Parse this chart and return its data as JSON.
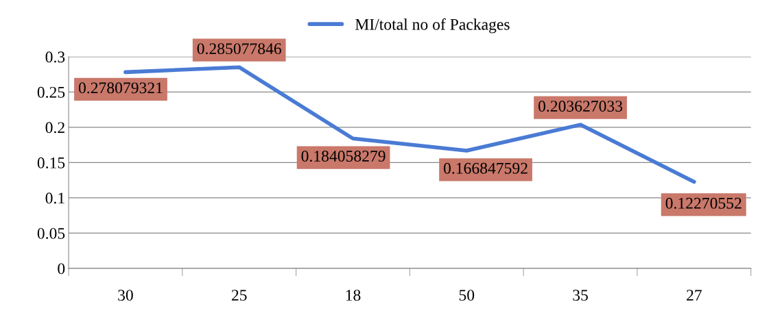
{
  "chart_data": {
    "type": "line",
    "categories": [
      "30",
      "25",
      "18",
      "50",
      "35",
      "27"
    ],
    "series": [
      {
        "name": "MI/total no of Packages",
        "color": "#4a7bd4",
        "values": [
          0.278079321,
          0.285077846,
          0.184058279,
          0.166847592,
          0.203627033,
          0.12270552
        ]
      }
    ],
    "ylim": [
      0,
      0.3
    ],
    "yticks": [
      0,
      0.05,
      0.1,
      0.15,
      0.2,
      0.25,
      0.3
    ],
    "grid": "y",
    "legend": "top",
    "data_labels": true,
    "marker": "none"
  }
}
